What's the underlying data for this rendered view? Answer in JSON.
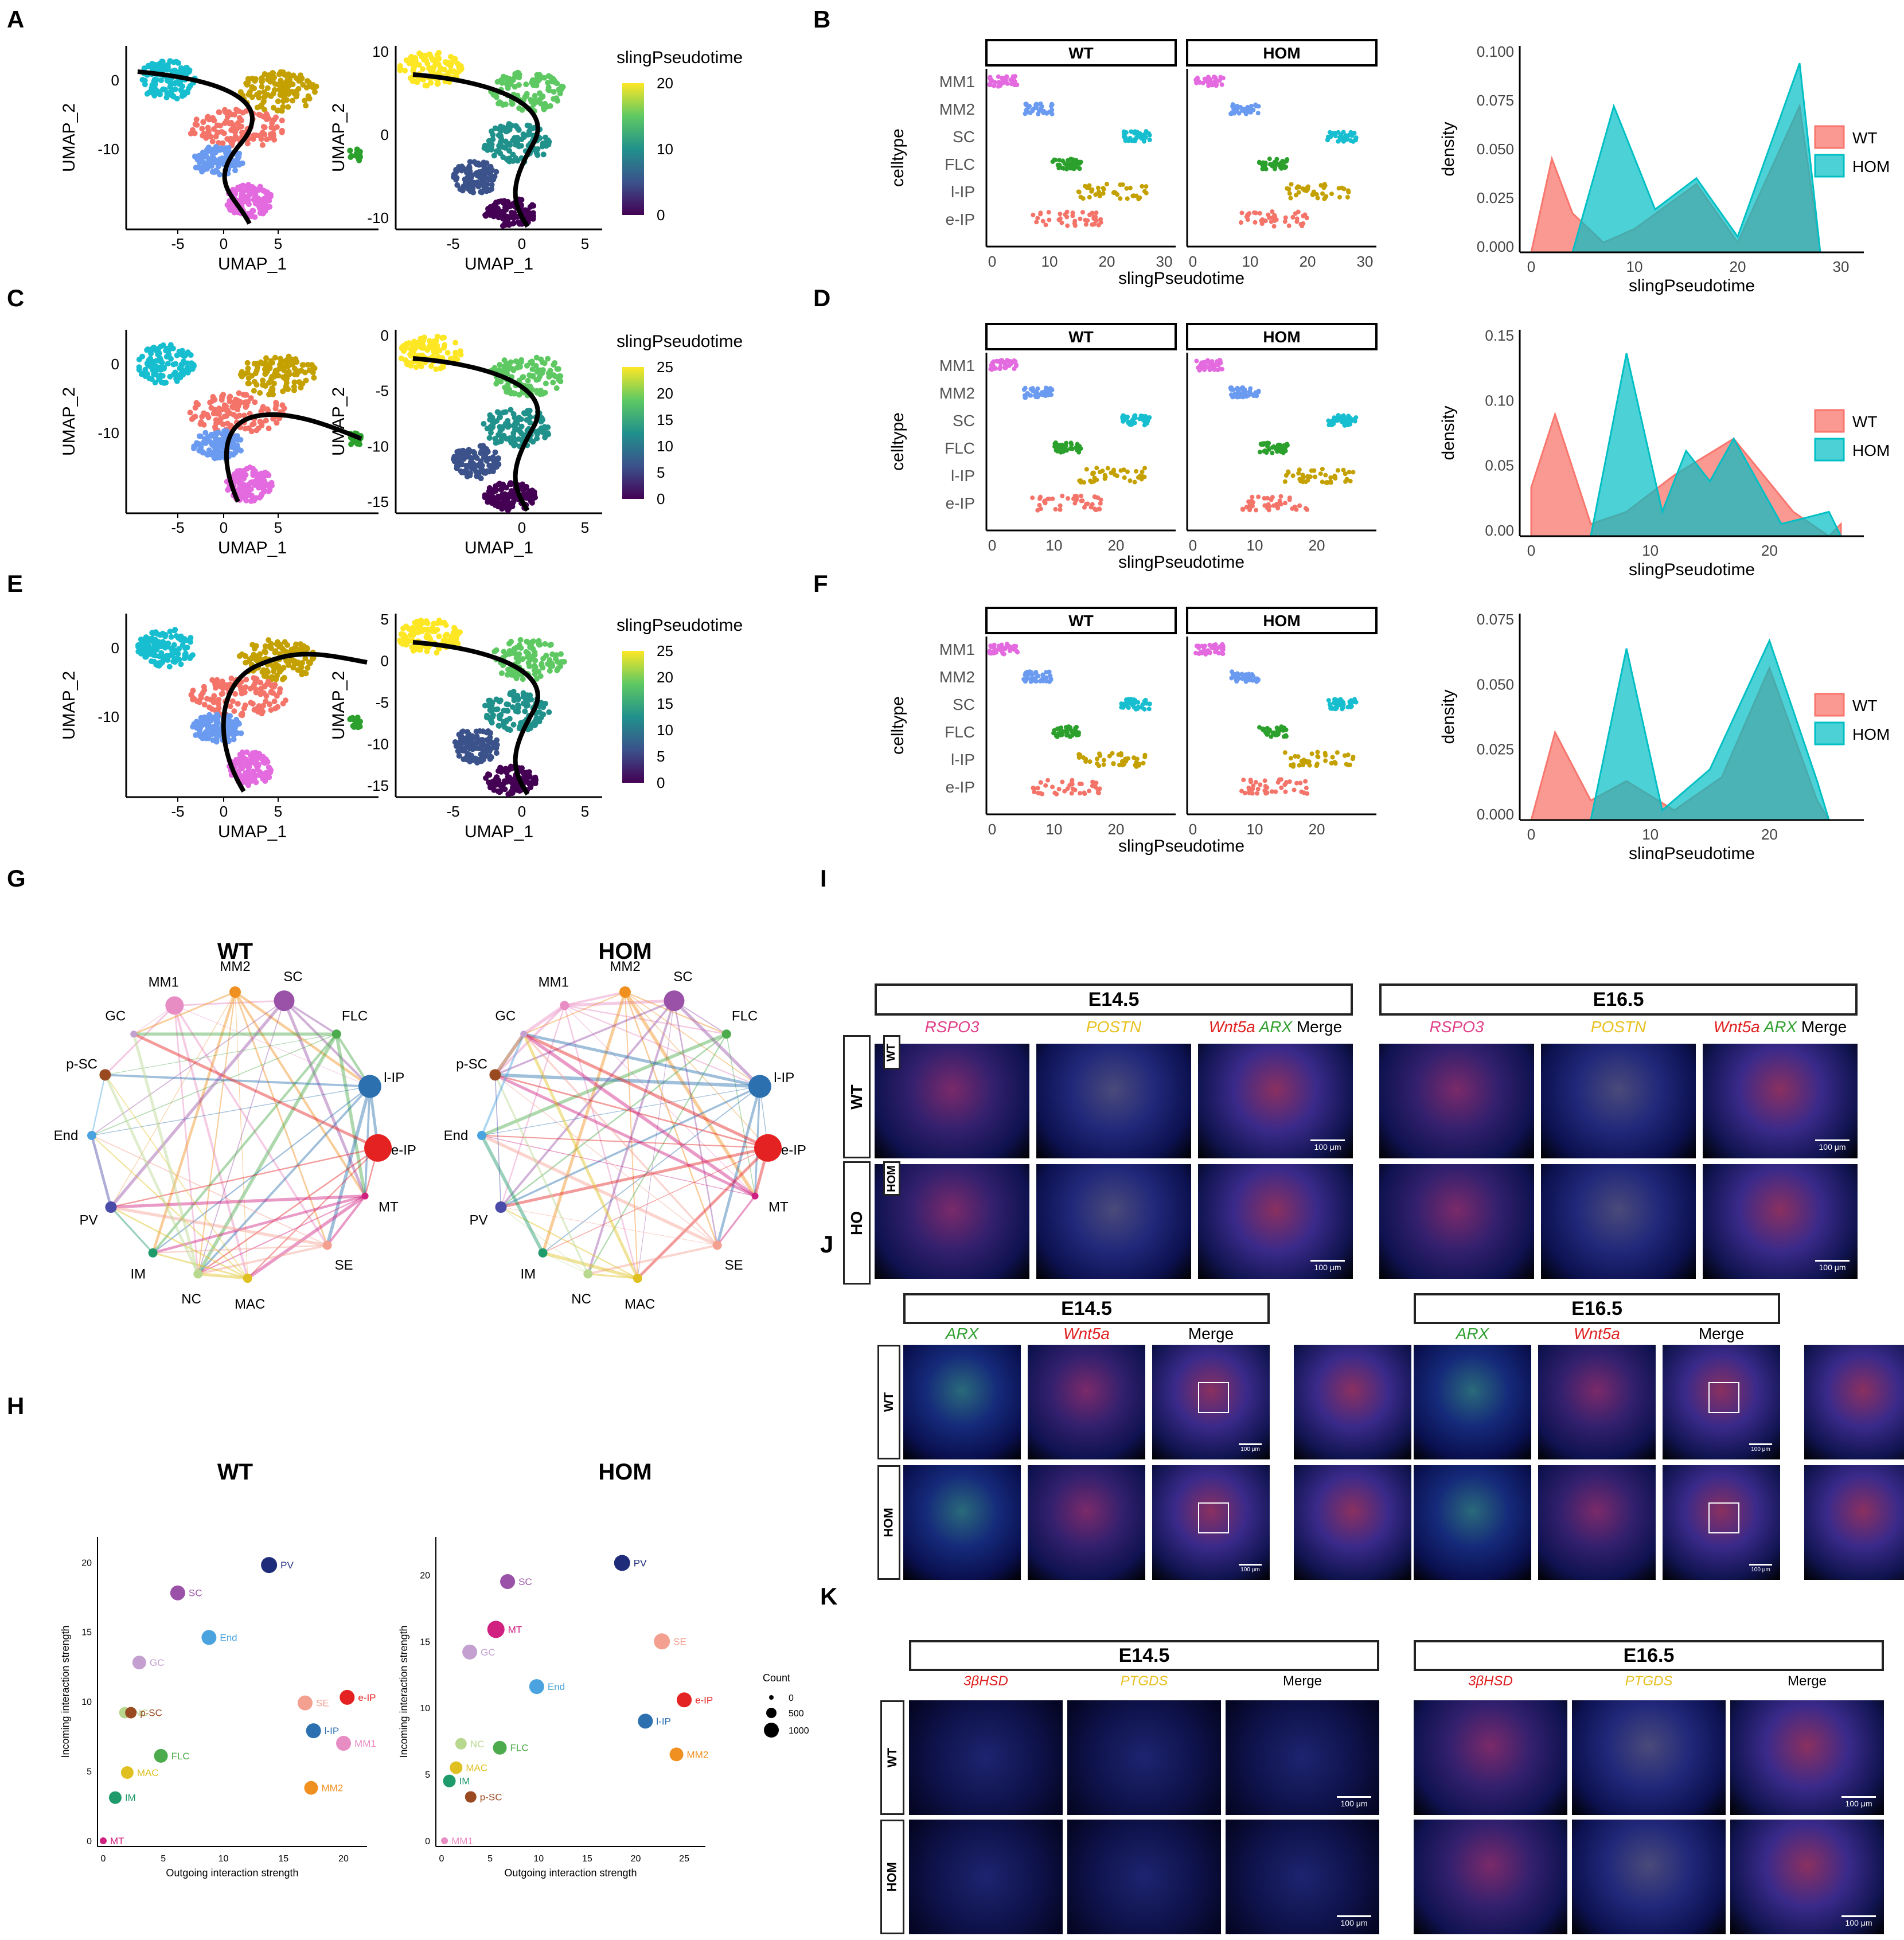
{
  "panel_letters": [
    "A",
    "B",
    "C",
    "D",
    "E",
    "F",
    "G",
    "H",
    "I",
    "J",
    "K"
  ],
  "umap": {
    "xlabel": "UMAP_1",
    "ylabel": "UMAP_2",
    "legend_title": "slingPseudotime",
    "rows": [
      {
        "xticks_left": [
          "-5",
          "0",
          "5"
        ],
        "yticks_left": [
          "0",
          "-10"
        ],
        "xticks_right": [
          "-5",
          "0",
          "5"
        ],
        "yticks_right": [
          "10",
          "0",
          "-10"
        ],
        "legend_ticks": [
          "20",
          "10",
          "0"
        ]
      },
      {
        "xticks_left": [
          "-5",
          "0",
          "5"
        ],
        "yticks_left": [
          "0",
          "-10"
        ],
        "xticks_right": [
          "0",
          "5"
        ],
        "yticks_right": [
          "0",
          "-5",
          "-10",
          "-15"
        ],
        "legend_ticks": [
          "25",
          "20",
          "15",
          "10",
          "5",
          "0"
        ]
      },
      {
        "xticks_left": [
          "-5",
          "0",
          "5"
        ],
        "yticks_left": [
          "0",
          "-10"
        ],
        "xticks_right": [
          "-5",
          "0",
          "5"
        ],
        "yticks_right": [
          "5",
          "0",
          "-5",
          "-10",
          "-15"
        ],
        "legend_ticks": [
          "25",
          "20",
          "15",
          "10",
          "5",
          "0"
        ]
      }
    ]
  },
  "celltype_plot": {
    "ylabel": "celltype",
    "xlabel": "slingPseudotime",
    "facets": [
      "WT",
      "HOM"
    ],
    "celltypes": [
      "MM1",
      "MM2",
      "SC",
      "FLC",
      "l-IP",
      "e-IP"
    ],
    "xticks": [
      [
        "0",
        "10",
        "20",
        "30"
      ],
      [
        "0",
        "10",
        "20"
      ],
      [
        "0",
        "10",
        "20"
      ]
    ]
  },
  "density": {
    "ylabel": "density",
    "xlabel": "slingPseudotime",
    "legend": [
      "WT",
      "HOM"
    ],
    "colors": {
      "WT": "#f8766d",
      "HOM": "#00bfc4"
    },
    "yticks": [
      [
        "0.100",
        "0.075",
        "0.050",
        "0.025",
        "0.000"
      ],
      [
        "0.15",
        "0.10",
        "0.05",
        "0.00"
      ],
      [
        "0.075",
        "0.050",
        "0.025",
        "0.000"
      ]
    ],
    "xticks": [
      [
        "0",
        "10",
        "20",
        "30"
      ],
      [
        "0",
        "10",
        "20"
      ],
      [
        "0",
        "10",
        "20"
      ]
    ]
  },
  "network": {
    "titles": [
      "WT",
      "HOM"
    ],
    "nodes_wt": [
      "MM1",
      "MM2",
      "SC",
      "FLC",
      "l-IP",
      "e-IP",
      "MT",
      "SE",
      "MAC",
      "NC",
      "IM",
      "PV",
      "End",
      "p-SC",
      "GC"
    ],
    "nodes_hom": [
      "MM1",
      "MM2",
      "SC",
      "FLC",
      "l-IP",
      "e-IP",
      "MT",
      "SE",
      "MAC",
      "NC",
      "IM",
      "PV",
      "End",
      "p-SC",
      "GC"
    ]
  },
  "scatter": {
    "titles": [
      "WT",
      "HOM"
    ],
    "xlabel": "Outgoing interaction strength",
    "ylabel": "Incoming interaction strength",
    "legend_title": "Count",
    "legend_values": [
      "0",
      "500",
      "1000"
    ],
    "wt_xticks": [
      "0",
      "5",
      "10",
      "15",
      "20"
    ],
    "wt_yticks": [
      "0",
      "5",
      "10",
      "15",
      "20"
    ],
    "hom_xticks": [
      "0",
      "5",
      "10",
      "15",
      "20",
      "25"
    ],
    "hom_yticks": [
      "0",
      "5",
      "10",
      "15",
      "20"
    ],
    "wt_points": [
      {
        "label": "PV",
        "x": 13.8,
        "y": 19.8,
        "size": 28,
        "color": "#1f2c7a"
      },
      {
        "label": "SC",
        "x": 6.2,
        "y": 17.8,
        "size": 26,
        "color": "#9a52a8"
      },
      {
        "label": "End",
        "x": 8.8,
        "y": 14.6,
        "size": 26,
        "color": "#4aa3df"
      },
      {
        "label": "GC",
        "x": 3.0,
        "y": 12.8,
        "size": 24,
        "color": "#c3a0d0"
      },
      {
        "label": "NC",
        "x": 1.8,
        "y": 9.2,
        "size": 20,
        "color": "#b8d890"
      },
      {
        "label": "p-SC",
        "x": 2.3,
        "y": 9.2,
        "size": 20,
        "color": "#9a4a20"
      },
      {
        "label": "SE",
        "x": 16.8,
        "y": 9.9,
        "size": 26,
        "color": "#f4a090"
      },
      {
        "label": "e-IP",
        "x": 20.3,
        "y": 10.3,
        "size": 26,
        "color": "#e52222"
      },
      {
        "label": "l-IP",
        "x": 17.5,
        "y": 7.9,
        "size": 26,
        "color": "#2c70b0"
      },
      {
        "label": "MM1",
        "x": 20.0,
        "y": 7.0,
        "size": 26,
        "color": "#e88cc4"
      },
      {
        "label": "FLC",
        "x": 4.8,
        "y": 6.1,
        "size": 24,
        "color": "#4cab4c"
      },
      {
        "label": "MAC",
        "x": 2.0,
        "y": 4.9,
        "size": 22,
        "color": "#e0c020"
      },
      {
        "label": "MM2",
        "x": 17.3,
        "y": 3.8,
        "size": 24,
        "color": "#f09020"
      },
      {
        "label": "IM",
        "x": 1.0,
        "y": 3.1,
        "size": 22,
        "color": "#1f9a6a"
      },
      {
        "label": "MT",
        "x": 0.0,
        "y": 0.0,
        "size": 12,
        "color": "#d02080"
      }
    ],
    "hom_points": [
      {
        "label": "PV",
        "x": 18.6,
        "y": 20.9,
        "size": 28,
        "color": "#1f2c7a"
      },
      {
        "label": "SC",
        "x": 6.8,
        "y": 19.5,
        "size": 26,
        "color": "#9a52a8"
      },
      {
        "label": "MT",
        "x": 5.6,
        "y": 15.9,
        "size": 30,
        "color": "#d02080"
      },
      {
        "label": "GC",
        "x": 2.9,
        "y": 14.2,
        "size": 26,
        "color": "#c3a0d0"
      },
      {
        "label": "SE",
        "x": 22.7,
        "y": 15.0,
        "size": 28,
        "color": "#f4a090"
      },
      {
        "label": "End",
        "x": 9.8,
        "y": 11.6,
        "size": 26,
        "color": "#4aa3df"
      },
      {
        "label": "e-IP",
        "x": 25.0,
        "y": 10.6,
        "size": 26,
        "color": "#e52222"
      },
      {
        "label": "l-IP",
        "x": 21.0,
        "y": 9.0,
        "size": 26,
        "color": "#2c70b0"
      },
      {
        "label": "NC",
        "x": 2.0,
        "y": 7.3,
        "size": 20,
        "color": "#b8d890"
      },
      {
        "label": "FLC",
        "x": 6.0,
        "y": 7.0,
        "size": 24,
        "color": "#4cab4c"
      },
      {
        "label": "MM2",
        "x": 24.2,
        "y": 6.5,
        "size": 24,
        "color": "#f09020"
      },
      {
        "label": "MAC",
        "x": 1.5,
        "y": 5.5,
        "size": 22,
        "color": "#e0c020"
      },
      {
        "label": "IM",
        "x": 0.8,
        "y": 4.5,
        "size": 22,
        "color": "#1f9a6a"
      },
      {
        "label": "p-SC",
        "x": 3.0,
        "y": 3.3,
        "size": 20,
        "color": "#9a4a20"
      },
      {
        "label": "MM1",
        "x": 0.3,
        "y": 0.0,
        "size": 12,
        "color": "#e88cc4"
      }
    ]
  },
  "panel_I": {
    "stages": [
      "E14.5",
      "E16.5"
    ],
    "stains": [
      "RSPO3",
      "POSTN",
      "Wnt5a",
      "ARX",
      "Merge"
    ],
    "rows": [
      "WT",
      "HOM"
    ],
    "row_tags": [
      "WT",
      "HO"
    ],
    "scale": "100 μm"
  },
  "panel_J": {
    "stages": [
      "E14.5",
      "E16.5"
    ],
    "stains": [
      "ARX",
      "Wnt5a",
      "Merge"
    ],
    "rows": [
      "WT",
      "HOM"
    ],
    "scale": "100 μm"
  },
  "panel_K": {
    "stages": [
      "E14.5",
      "E16.5"
    ],
    "stains": [
      "3βHSD",
      "PTGDS",
      "Merge"
    ],
    "rows": [
      "WT",
      "HOM"
    ],
    "scale": "100 μm"
  }
}
